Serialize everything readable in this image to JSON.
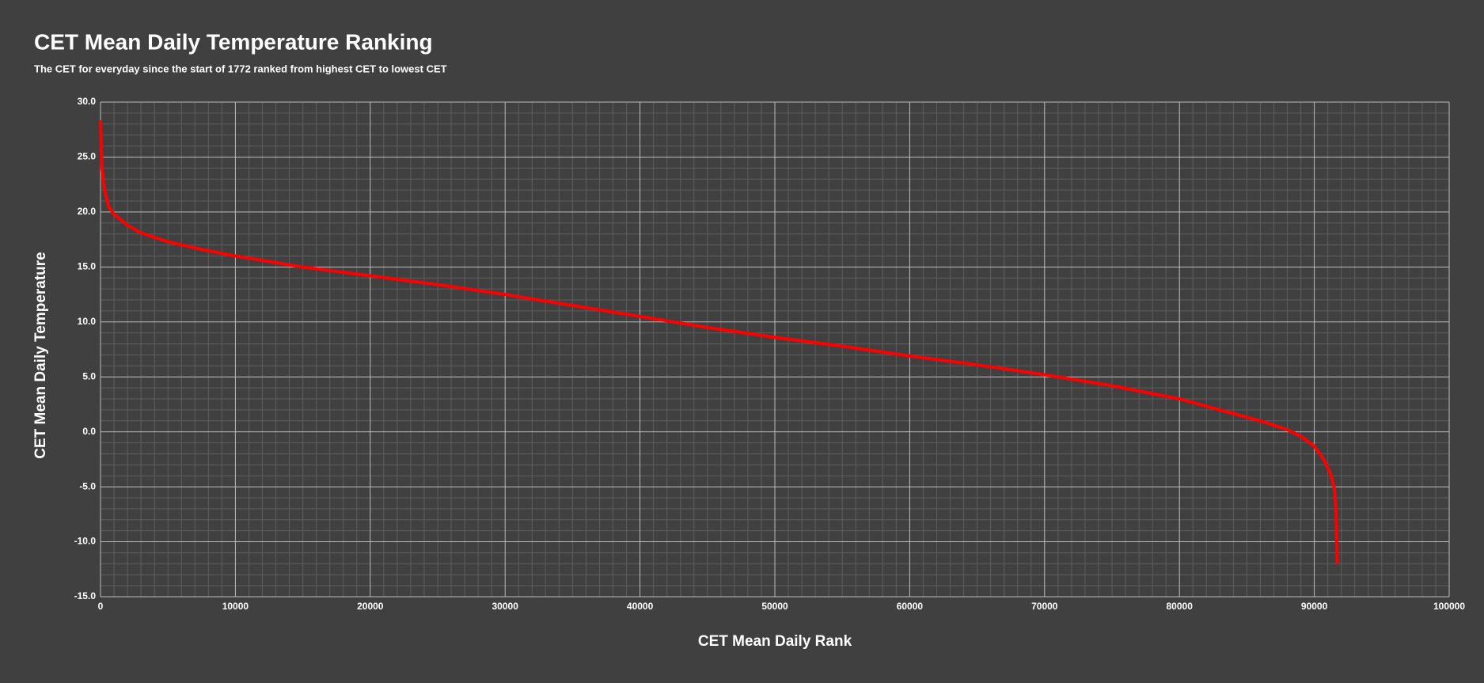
{
  "chart_data": {
    "type": "line",
    "title": "CET Mean Daily Temperature Ranking",
    "subtitle": "The CET for everyday since the start of 1772 ranked from highest CET to lowest CET",
    "xlabel": "CET Mean Daily Rank",
    "ylabel": "CET Mean Daily Temperature",
    "x": [
      0,
      100,
      300,
      600,
      1000,
      2000,
      3000,
      5000,
      7500,
      10000,
      15000,
      20000,
      25000,
      30000,
      35000,
      40000,
      45000,
      50000,
      55000,
      60000,
      65000,
      70000,
      75000,
      80000,
      83000,
      86000,
      88000,
      89000,
      90000,
      90700,
      91200,
      91500,
      91600,
      91650,
      91700
    ],
    "series": [
      {
        "name": "CET Mean Daily Temperature",
        "color": "#ff0000",
        "values": [
          28.2,
          24,
          22,
          20.5,
          19.8,
          18.8,
          18.1,
          17.3,
          16.6,
          16.0,
          15.0,
          14.2,
          13.4,
          12.5,
          11.5,
          10.5,
          9.5,
          8.6,
          7.8,
          6.9,
          6.1,
          5.2,
          4.2,
          3.0,
          2.0,
          1.0,
          0.2,
          -0.4,
          -1.3,
          -2.5,
          -3.8,
          -5.2,
          -7,
          -9,
          -11.9
        ]
      }
    ],
    "xlim": [
      0,
      100000
    ],
    "xticks": [
      0,
      10000,
      20000,
      30000,
      40000,
      50000,
      60000,
      70000,
      80000,
      90000,
      100000
    ],
    "ylim": [
      -15,
      30
    ],
    "yticks": [
      {
        "value": -15,
        "label": "-15.0"
      },
      {
        "value": -10,
        "label": "-10.0"
      },
      {
        "value": -5,
        "label": "-5.0"
      },
      {
        "value": 0,
        "label": "0.0"
      },
      {
        "value": 5,
        "label": "5.0"
      },
      {
        "value": 10,
        "label": "10.0"
      },
      {
        "value": 15,
        "label": "15.0"
      },
      {
        "value": 20,
        "label": "20.0"
      },
      {
        "value": 25,
        "label": "25.0"
      },
      {
        "value": 30,
        "label": "30.0"
      }
    ],
    "grid": true
  }
}
